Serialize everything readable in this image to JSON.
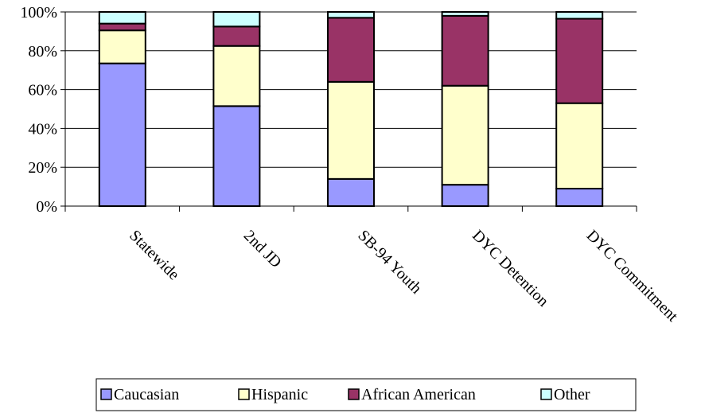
{
  "chart_data": {
    "type": "bar",
    "stacked": true,
    "percent": true,
    "categories": [
      "Statewide",
      "2nd JD",
      "SB-94 Youth",
      "DYC Detention",
      "DYC Commitment"
    ],
    "series": [
      {
        "name": "Caucasian",
        "color": "#9999ff",
        "values": [
          73.5,
          51.5,
          14,
          11,
          9
        ]
      },
      {
        "name": "Hispanic",
        "color": "#ffffcc",
        "values": [
          17,
          31,
          50,
          51,
          44
        ]
      },
      {
        "name": "African American",
        "color": "#993366",
        "values": [
          3.5,
          10,
          33,
          36,
          43.5
        ]
      },
      {
        "name": "Other",
        "color": "#ccffff",
        "values": [
          6,
          7.5,
          3,
          2,
          3.5
        ]
      }
    ],
    "y_ticks": [
      "0%",
      "20%",
      "40%",
      "60%",
      "80%",
      "100%"
    ],
    "ylim": [
      0,
      100
    ],
    "grid": true,
    "legend_position": "bottom"
  }
}
